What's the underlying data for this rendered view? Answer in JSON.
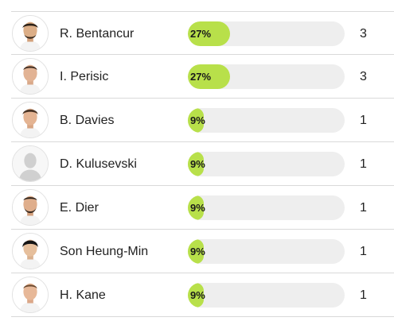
{
  "players": [
    {
      "name": "R. Bentancur",
      "percent_label": "27%",
      "percent": 27,
      "count": "3",
      "photo": "player-photo"
    },
    {
      "name": "I. Perisic",
      "percent_label": "27%",
      "percent": 27,
      "count": "3",
      "photo": "player-photo"
    },
    {
      "name": "B. Davies",
      "percent_label": "9%",
      "percent": 9,
      "count": "1",
      "photo": "player-photo"
    },
    {
      "name": "D. Kulusevski",
      "percent_label": "9%",
      "percent": 9,
      "count": "1",
      "photo": "placeholder-silhouette"
    },
    {
      "name": "E. Dier",
      "percent_label": "9%",
      "percent": 9,
      "count": "1",
      "photo": "player-photo"
    },
    {
      "name": "Son Heung-Min",
      "percent_label": "9%",
      "percent": 9,
      "count": "1",
      "photo": "player-photo"
    },
    {
      "name": "H. Kane",
      "percent_label": "9%",
      "percent": 9,
      "count": "1",
      "photo": "player-photo"
    }
  ],
  "colors": {
    "bar_fill": "#b8e04a",
    "bar_track": "#eeeeee",
    "divider": "#d9d9d9"
  }
}
